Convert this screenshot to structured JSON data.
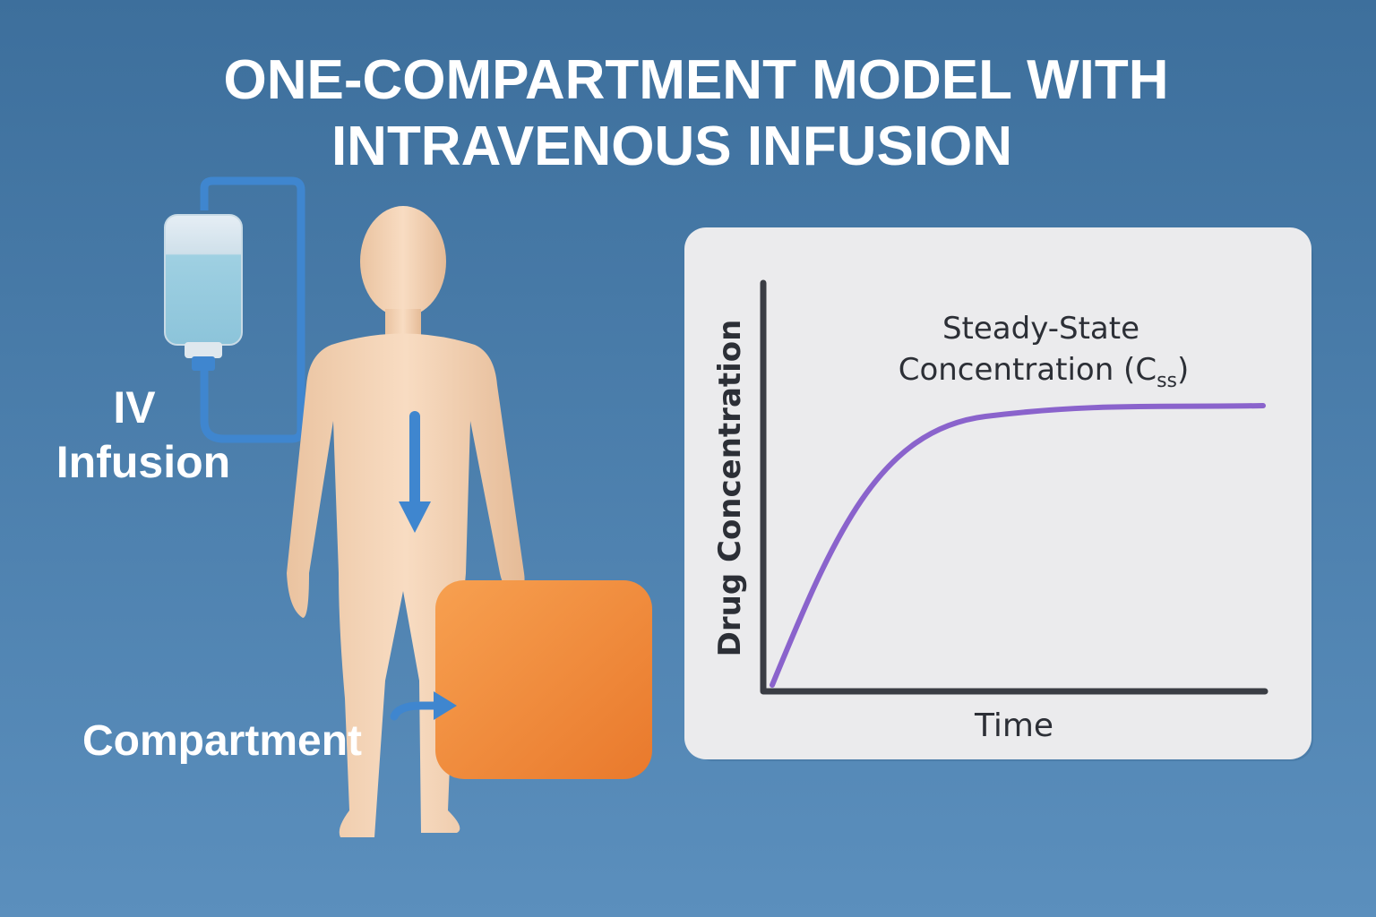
{
  "header": {
    "title_lines": [
      "ONE-COMPARTMENT MODEL WITH",
      "INTRAVENOUS INFUSION"
    ]
  },
  "labels": {
    "iv_infusion": [
      "IV",
      "Infusion"
    ],
    "compartment": "Compartment"
  },
  "graph": {
    "y_axis_label": "Drug Concentration",
    "x_axis_label": "Time",
    "annotation": {
      "line1": "Steady-State",
      "line2": "Concentration (C",
      "subscript": "ss",
      "close": ")"
    }
  }
}
